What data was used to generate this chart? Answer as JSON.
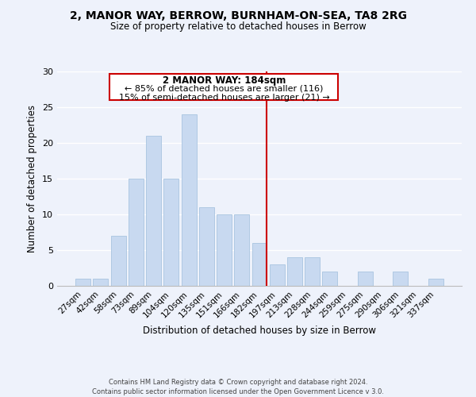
{
  "title_line1": "2, MANOR WAY, BERROW, BURNHAM-ON-SEA, TA8 2RG",
  "title_line2": "Size of property relative to detached houses in Berrow",
  "xlabel": "Distribution of detached houses by size in Berrow",
  "ylabel": "Number of detached properties",
  "bar_color": "#c8d9f0",
  "bar_edgecolor": "#a8c4e0",
  "bin_labels": [
    "27sqm",
    "42sqm",
    "58sqm",
    "73sqm",
    "89sqm",
    "104sqm",
    "120sqm",
    "135sqm",
    "151sqm",
    "166sqm",
    "182sqm",
    "197sqm",
    "213sqm",
    "228sqm",
    "244sqm",
    "259sqm",
    "275sqm",
    "290sqm",
    "306sqm",
    "321sqm",
    "337sqm"
  ],
  "bar_heights": [
    1,
    1,
    7,
    15,
    21,
    15,
    24,
    11,
    10,
    10,
    6,
    3,
    4,
    4,
    2,
    0,
    2,
    0,
    2,
    0,
    1
  ],
  "vline_color": "#cc0000",
  "ylim": [
    0,
    30
  ],
  "yticks": [
    0,
    5,
    10,
    15,
    20,
    25,
    30
  ],
  "annotation_title": "2 MANOR WAY: 184sqm",
  "annotation_line1": "← 85% of detached houses are smaller (116)",
  "annotation_line2": "15% of semi-detached houses are larger (21) →",
  "annotation_box_edgecolor": "#cc0000",
  "footer_line1": "Contains HM Land Registry data © Crown copyright and database right 2024.",
  "footer_line2": "Contains public sector information licensed under the Open Government Licence v 3.0.",
  "background_color": "#eef2fb",
  "grid_color": "#ffffff"
}
